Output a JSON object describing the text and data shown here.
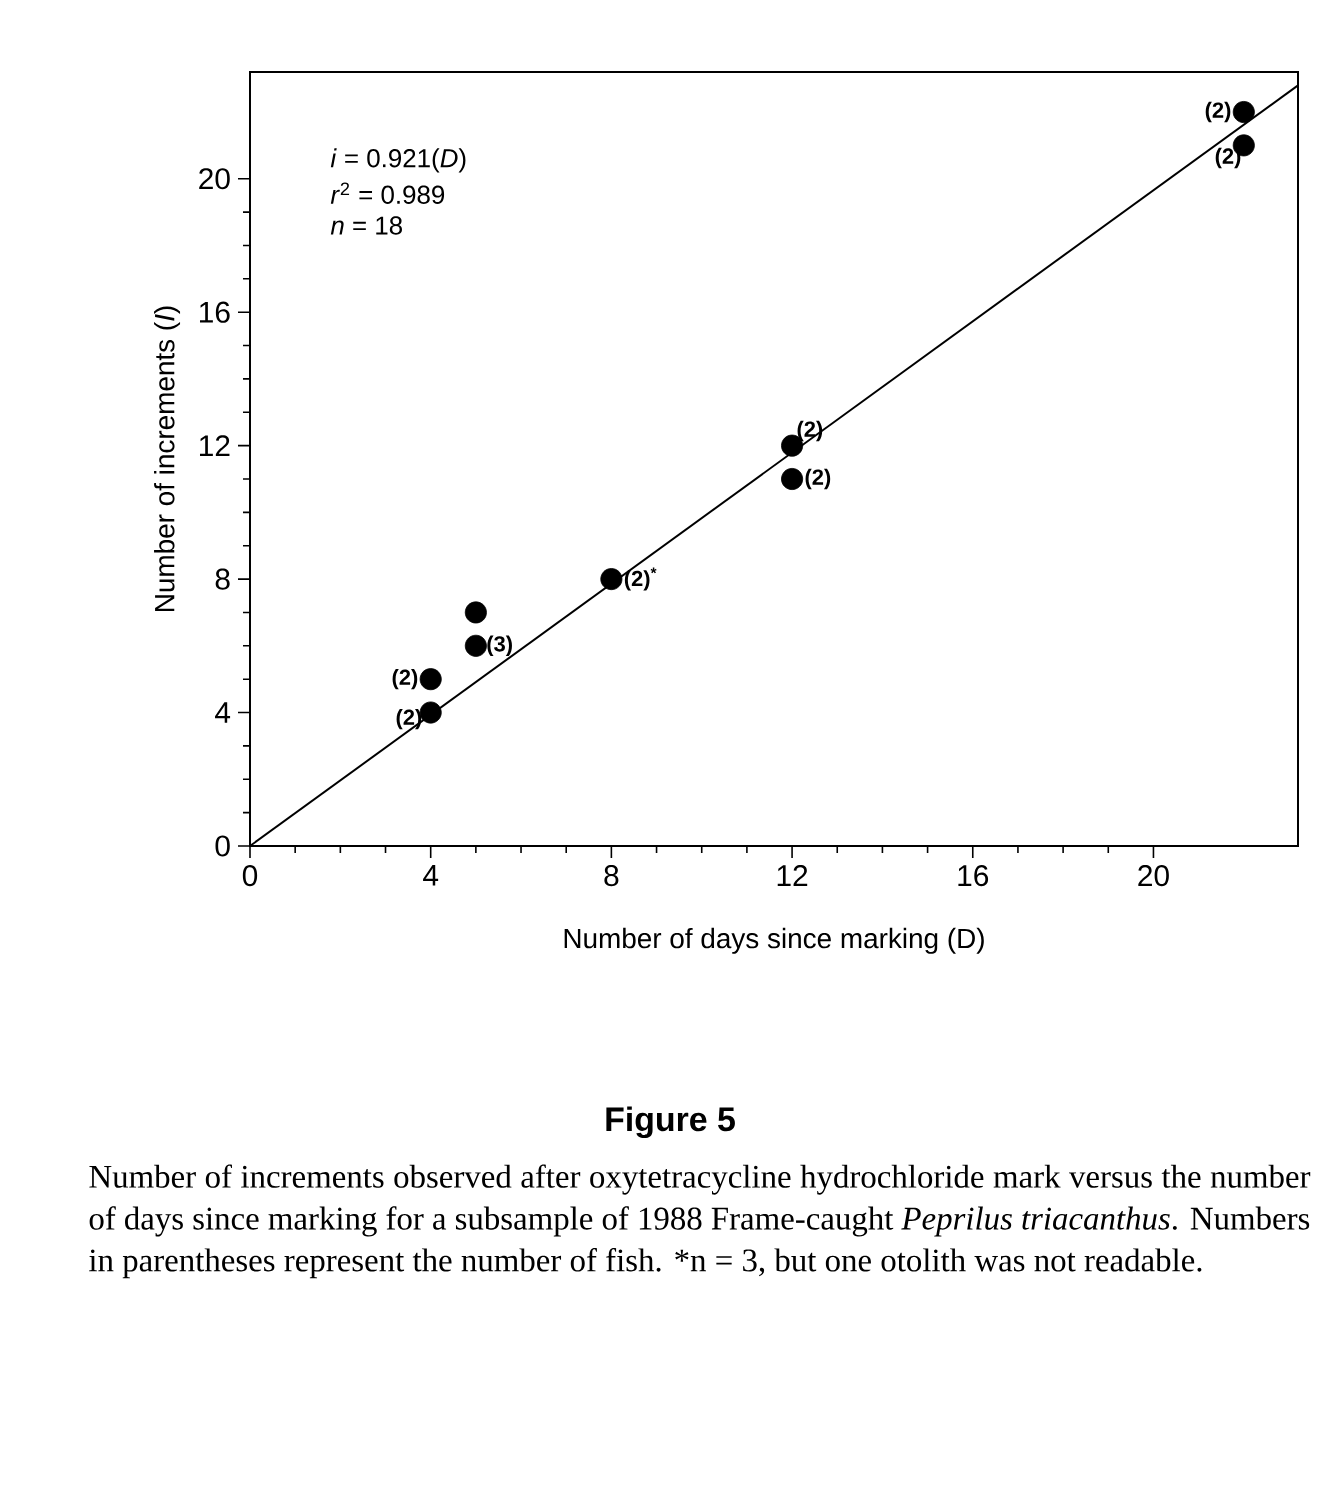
{
  "chart_data": {
    "type": "scatter",
    "title": "Figure 5",
    "xlabel": "Number of days since marking (D)",
    "ylabel": "Number of increments (*I*)",
    "xlim": [
      0,
      23.2
    ],
    "ylim": [
      0,
      23.2
    ],
    "xticks": [
      0,
      4,
      8,
      12,
      16,
      20
    ],
    "yticks": [
      0,
      4,
      8,
      12,
      16,
      20
    ],
    "grid": false,
    "series": [
      {
        "color": "#000000",
        "marker": "circle",
        "x": [
          4,
          4,
          5,
          5,
          8,
          12,
          12,
          22,
          22
        ],
        "values": [
          4,
          5,
          6,
          7,
          8,
          11,
          12,
          21,
          22
        ]
      },
      {
        "type": "line",
        "color": "#000000",
        "marker": "none",
        "line_style": "solid",
        "x": [
          0,
          23.2
        ],
        "values": [
          0,
          22.8
        ]
      }
    ],
    "annotations": [
      "*i* = 0.921(*D*)",
      "*r*$^{2}$ = 0.989",
      "*n* = 18",
      {
        "text": "(2)",
        "x": 4,
        "y": 4
      },
      {
        "text": "(2)",
        "x": 4,
        "y": 5
      },
      {
        "text": "(3)",
        "x": 5,
        "y": 6
      },
      {
        "text": "(2)$^{*}$",
        "x": 8,
        "y": 8
      },
      {
        "text": "(2)",
        "x": 12,
        "y": 11
      },
      {
        "text": "(2)",
        "x": 12,
        "y": 12
      },
      {
        "text": "(2)",
        "x": 22,
        "y": 21
      },
      {
        "text": "(2)",
        "x": 22,
        "y": 22
      },
      "Number of increments observed after oxytetracycline hydrochloride mark versus the number of days since marking for a subsample of 1988 Frame-caught *Peprilus triacanthus*. Numbers in parentheses represent the number of fish. *n = 3, but one otolith was not readable."
    ]
  }
}
